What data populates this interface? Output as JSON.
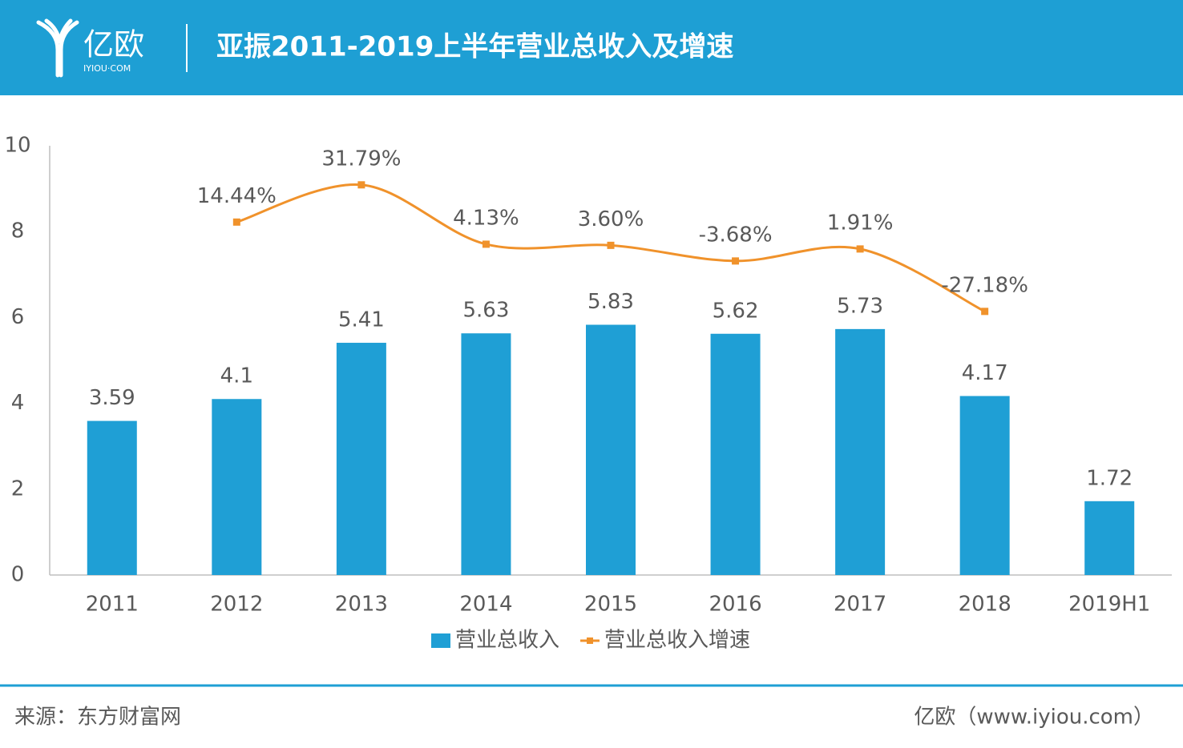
{
  "header": {
    "logo": "亿欧",
    "logo_sub": "IYIOU·COM",
    "title": "亚振2011-2019上半年营业总收入及增速"
  },
  "chart_data": {
    "type": "bar",
    "categories": [
      "2011",
      "2012",
      "2013",
      "2014",
      "2015",
      "2016",
      "2017",
      "2018",
      "2019H1"
    ],
    "series": [
      {
        "name": "营业总收入",
        "type": "bar",
        "color": "#1f9fd5",
        "values": [
          3.59,
          4.1,
          5.41,
          5.63,
          5.83,
          5.62,
          5.73,
          4.17,
          1.72
        ]
      },
      {
        "name": "营业总收入增速",
        "type": "line",
        "axis": "y2",
        "color": "#f0922b",
        "values": [
          null,
          14.44,
          31.79,
          4.13,
          3.6,
          -3.68,
          1.91,
          -27.18,
          null
        ],
        "value_labels": [
          null,
          "14.44%",
          "31.79%",
          "4.13%",
          "3.60%",
          "-3.68%",
          "1.91%",
          "-27.18%",
          null
        ]
      }
    ],
    "ylim": [
      0,
      10
    ],
    "yticks": [
      0,
      2,
      4,
      6,
      8,
      10
    ],
    "y2lim": [
      -150,
      50
    ],
    "legend": "bottom"
  },
  "footer": {
    "source": "来源：东方财富网",
    "credit": "亿欧（www.iyiou.com）"
  }
}
